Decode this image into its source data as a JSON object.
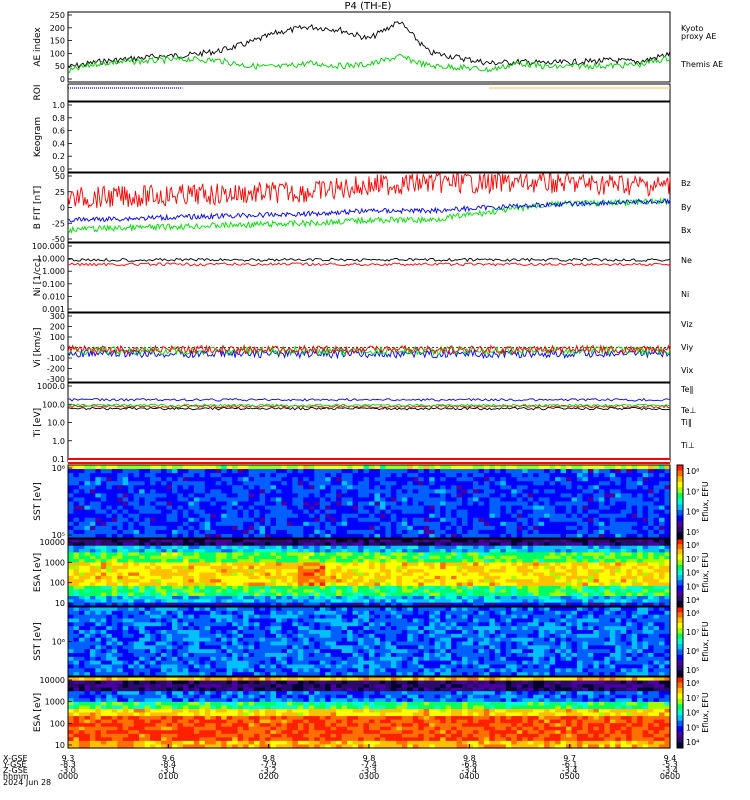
{
  "chart_data": [
    {
      "type": "line",
      "title": "P4 (TH-E)",
      "ylabel": "AE index",
      "yticks": [
        "250",
        "200",
        "150",
        "100",
        "50",
        "0"
      ],
      "ylim": [
        0,
        260
      ],
      "series": [
        {
          "name": "Themis AE",
          "color": "#000000",
          "x": [
            0,
            0.05,
            0.1,
            0.15,
            0.2,
            0.25,
            0.3,
            0.35,
            0.4,
            0.45,
            0.5,
            0.55,
            0.6,
            0.65,
            0.7,
            0.75,
            0.8,
            0.85,
            0.9,
            0.95,
            1.0
          ],
          "values": [
            55,
            75,
            85,
            95,
            100,
            115,
            145,
            185,
            205,
            195,
            160,
            225,
            110,
            90,
            70,
            75,
            70,
            75,
            80,
            75,
            105
          ]
        },
        {
          "name": "Kyoto proxy AE",
          "color": "#00cc00",
          "x": [
            0,
            0.05,
            0.1,
            0.15,
            0.2,
            0.25,
            0.3,
            0.35,
            0.4,
            0.45,
            0.5,
            0.55,
            0.6,
            0.65,
            0.7,
            0.75,
            0.8,
            0.85,
            0.9,
            0.95,
            1.0
          ],
          "values": [
            40,
            70,
            75,
            80,
            85,
            80,
            60,
            55,
            70,
            60,
            65,
            95,
            60,
            55,
            45,
            70,
            55,
            60,
            60,
            65,
            90
          ]
        }
      ],
      "legend": [
        "Kyoto",
        "proxy AE",
        "Themis AE"
      ]
    },
    {
      "type": "line",
      "ylabel": "ROI",
      "segments": [
        {
          "color": "#0000cc",
          "x_start": 0.0,
          "x_end": 0.19
        },
        {
          "color": "#ff9900",
          "x_start": 0.7,
          "x_end": 1.0
        }
      ]
    },
    {
      "type": "line",
      "ylabel": "Keogram",
      "yticks": [
        "1.0",
        "0.8",
        "0.6",
        "0.4",
        "0.2",
        "0.0"
      ],
      "ylim": [
        0,
        1
      ],
      "note_empty": true
    },
    {
      "type": "line",
      "ylabel": "B FIT [nT]",
      "yticks": [
        "50",
        "25",
        "0",
        "-25",
        "-50"
      ],
      "ylim": [
        -55,
        55
      ],
      "series": [
        {
          "name": "Bz",
          "color": "#ff0000",
          "x": [
            0,
            0.2,
            0.4,
            0.5,
            0.6,
            0.8,
            1.0
          ],
          "values": [
            15,
            20,
            25,
            35,
            40,
            40,
            35
          ]
        },
        {
          "name": "By",
          "color": "#00dd00",
          "x": [
            0,
            0.2,
            0.4,
            0.5,
            0.6,
            0.8,
            1.0
          ],
          "values": [
            -35,
            -30,
            -25,
            -20,
            -20,
            5,
            10
          ]
        },
        {
          "name": "Bx",
          "color": "#0000ff",
          "x": [
            0,
            0.2,
            0.4,
            0.5,
            0.6,
            0.8,
            1.0
          ],
          "values": [
            -20,
            -15,
            -10,
            -5,
            -5,
            5,
            10
          ]
        }
      ]
    },
    {
      "type": "line",
      "ylabel": "Ni [1/cc]",
      "log": true,
      "yticks": [
        "100.000",
        "10.000",
        "1.000",
        "0.100",
        "0.010",
        "0.001"
      ],
      "series": [
        {
          "name": "Ne",
          "color": "#ff0000",
          "value": 3.5
        },
        {
          "name": "Ni",
          "color": "#000000",
          "value": 8
        }
      ]
    },
    {
      "type": "line",
      "ylabel": "Vi [km/s]",
      "yticks": [
        "300",
        "200",
        "100",
        "0",
        "-100",
        "-200",
        "-300"
      ],
      "ylim": [
        -300,
        300
      ],
      "series": [
        {
          "name": "Viz",
          "color": "#ff0000",
          "value": -20
        },
        {
          "name": "Viy",
          "color": "#00dd00",
          "value": -30
        },
        {
          "name": "Vix",
          "color": "#0000ff",
          "value": -60
        }
      ]
    },
    {
      "type": "line",
      "ylabel": "Ti [eV]",
      "log": true,
      "yticks": [
        "1000.0",
        "100.0",
        "10.0",
        "1.0",
        "0.1"
      ],
      "series": [
        {
          "name": "Te‖",
          "color": "#000000",
          "value": 45
        },
        {
          "name": "Te⊥",
          "color": "#ff0000",
          "value": 60
        },
        {
          "name": "Ti‖",
          "color": "#00dd00",
          "value": 70
        },
        {
          "name": "Ti⊥",
          "color": "#0000ff",
          "value": 150
        }
      ]
    },
    {
      "type": "heatmap",
      "ylabel": "SST [eV]",
      "yticks": [
        "10⁶",
        "10⁵"
      ],
      "colorbar": {
        "label": "Eflux, EFU",
        "ticks": [
          "10⁸",
          "10⁷",
          "10⁶",
          "10⁵"
        ]
      }
    },
    {
      "type": "heatmap",
      "ylabel": "ESA [eV]",
      "yticks": [
        "10000",
        "1000",
        "100",
        "10"
      ],
      "colorbar": {
        "label": "Eflux, EFU",
        "ticks": [
          "10⁸",
          "10⁷",
          "10⁶",
          "10⁵",
          "10⁴"
        ]
      }
    },
    {
      "type": "heatmap",
      "ylabel": "SST [eV]",
      "yticks": [
        "10⁶"
      ],
      "colorbar": {
        "label": "Eflux, EFU",
        "ticks": [
          "10⁸",
          "10⁷",
          "10⁶",
          "10⁵"
        ]
      }
    },
    {
      "type": "heatmap",
      "ylabel": "ESA [eV]",
      "yticks": [
        "10000",
        "1000",
        "100",
        "10"
      ],
      "colorbar": {
        "label": "Eflux, EFU",
        "ticks": [
          "10⁸",
          "10⁷",
          "10⁶",
          "10⁵",
          "10⁴"
        ]
      }
    }
  ],
  "xaxis": {
    "row_labels": [
      "X-GSE",
      "Y-GSE",
      "Z-GSE",
      "hhmm",
      "2024 Jun 28"
    ],
    "columns": [
      {
        "x": "9.3",
        "y": "-8.3",
        "z": "-3.0",
        "t": "0000"
      },
      {
        "x": "9.6",
        "y": "-8.4",
        "z": "-3.1",
        "t": "0100"
      },
      {
        "x": "9.8",
        "y": "-7.9",
        "z": "-3.2",
        "t": "0200"
      },
      {
        "x": "9.8",
        "y": "-7.4",
        "z": "-3.3",
        "t": "0300"
      },
      {
        "x": "9.8",
        "y": "-6.8",
        "z": "-3.4",
        "t": "0400"
      },
      {
        "x": "9.7",
        "y": "-6.1",
        "z": "-3.4",
        "t": "0500"
      },
      {
        "x": "9.4",
        "y": "-5.3",
        "z": "-3.4",
        "t": "0600"
      }
    ]
  }
}
